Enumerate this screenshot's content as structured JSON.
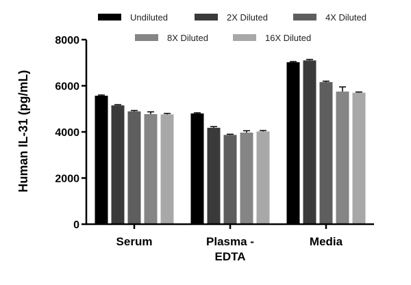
{
  "chart_data": {
    "type": "bar",
    "title": "",
    "xlabel": "",
    "ylabel": "Human IL-31 (pg/mL)",
    "ylim": [
      0,
      8000
    ],
    "yticks": [
      "0",
      "2000",
      "4000",
      "6000",
      "8000"
    ],
    "ytick_values": [
      0,
      2000,
      4000,
      6000,
      8000
    ],
    "categories": [
      {
        "lines": [
          "Serum"
        ]
      },
      {
        "lines": [
          "Plasma -",
          "EDTA"
        ]
      },
      {
        "lines": [
          "Media"
        ]
      }
    ],
    "legend_position": "top",
    "series": [
      {
        "name": "Undiluted",
        "color": "#000000",
        "values": [
          5570,
          4800,
          7020
        ],
        "errors": [
          30,
          30,
          30
        ]
      },
      {
        "name": "2X Diluted",
        "color": "#3a3a3a",
        "values": [
          5150,
          4180,
          7100
        ],
        "errors": [
          30,
          50,
          40
        ]
      },
      {
        "name": "4X Diluted",
        "color": "#5e5e5e",
        "values": [
          4890,
          3870,
          6160
        ],
        "errors": [
          40,
          30,
          40
        ]
      },
      {
        "name": "8X Diluted",
        "color": "#858585",
        "values": [
          4770,
          3970,
          5750
        ],
        "errors": [
          100,
          80,
          200
        ]
      },
      {
        "name": "16X Diluted",
        "color": "#a8a8a8",
        "values": [
          4760,
          4020,
          5700
        ],
        "errors": [
          40,
          40,
          30
        ]
      }
    ]
  }
}
